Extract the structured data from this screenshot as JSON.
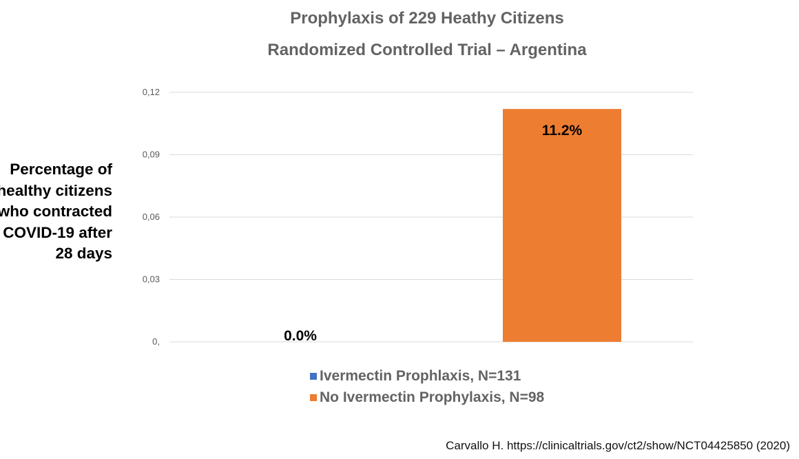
{
  "chart_data": {
    "type": "bar",
    "title": "Prophylaxis of 229 Heathy Citizens",
    "subtitle": "Randomized Controlled Trial – Argentina",
    "ylabel": "Percentage of healthy citizens who contracted COVID-19 after 28 days",
    "ylabel_lines": [
      "Percentage of",
      "healthy citizens",
      "who contracted",
      "COVID-19 after",
      "28 days"
    ],
    "xlabel": "",
    "ylim": [
      0,
      0.12
    ],
    "y_ticks": [
      0,
      0.03,
      0.06,
      0.09,
      0.12
    ],
    "y_tick_labels": [
      "0,",
      "0,03",
      "0,06",
      "0,09",
      "0,12"
    ],
    "grid": true,
    "legend_position": "bottom",
    "series": [
      {
        "name": "Ivermectin Prophlaxis, N=131",
        "value": 0.0,
        "data_label": "0.0%",
        "color": "#4472C4"
      },
      {
        "name": "No Ivermectin Prophylaxis, N=98",
        "value": 0.112,
        "data_label": "11.2%",
        "color": "#ED7D31"
      }
    ]
  },
  "source": "Carvallo H. https://clinicaltrials.gov/ct2/show/NCT04425850 (2020)"
}
